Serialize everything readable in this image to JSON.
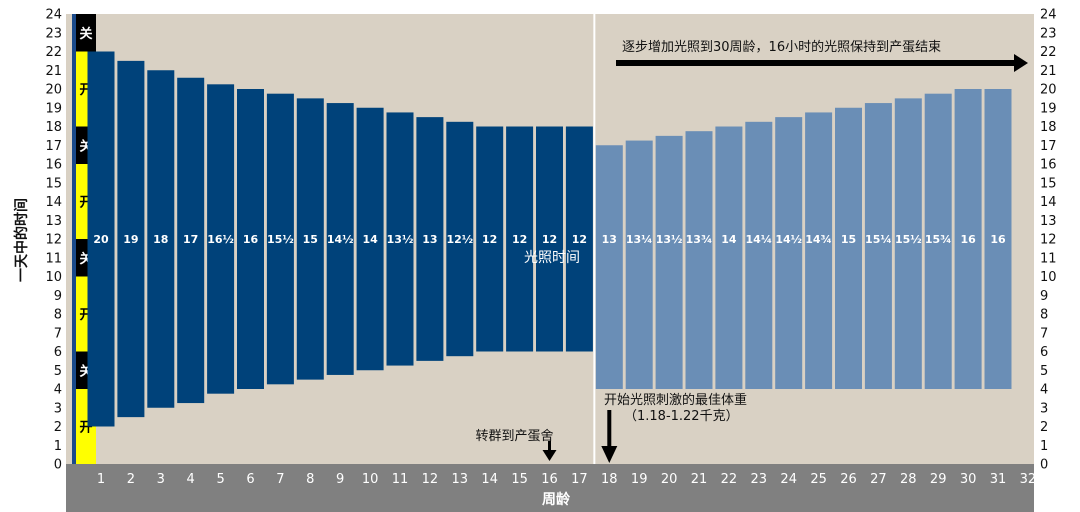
{
  "chart_data": {
    "type": "bar",
    "title": "",
    "ylabel": "一天中的时间",
    "xlabel": "周龄",
    "ylim": [
      0,
      24
    ],
    "y_ticks": [
      0,
      1,
      2,
      3,
      4,
      5,
      6,
      7,
      8,
      9,
      10,
      11,
      12,
      13,
      14,
      15,
      16,
      17,
      18,
      19,
      20,
      21,
      22,
      23,
      24
    ],
    "categories": [
      "1",
      "2",
      "3",
      "4",
      "5",
      "6",
      "7",
      "8",
      "9",
      "10",
      "11",
      "12",
      "13",
      "14",
      "15",
      "16",
      "17",
      "18",
      "19",
      "20",
      "21",
      "22",
      "23",
      "24",
      "25",
      "26",
      "27",
      "28",
      "29",
      "30",
      "31",
      "32"
    ],
    "series": [
      {
        "name": "",
        "color": "#00427a",
        "bars": [
          {
            "week": 1,
            "start": 2,
            "end": 22,
            "label": "20"
          },
          {
            "week": 2,
            "start": 2.5,
            "end": 21.5,
            "label": "19"
          },
          {
            "week": 3,
            "start": 3,
            "end": 21,
            "label": "18"
          },
          {
            "week": 4,
            "start": 3.25,
            "end": 20.6,
            "label": "17"
          },
          {
            "week": 5,
            "start": 3.75,
            "end": 20.25,
            "label": "16½"
          },
          {
            "week": 6,
            "start": 4,
            "end": 20,
            "label": "16"
          },
          {
            "week": 7,
            "start": 4.25,
            "end": 19.75,
            "label": "15½"
          },
          {
            "week": 8,
            "start": 4.5,
            "end": 19.5,
            "label": "15"
          },
          {
            "week": 9,
            "start": 4.75,
            "end": 19.25,
            "label": "14½"
          },
          {
            "week": 10,
            "start": 5,
            "end": 19,
            "label": "14"
          },
          {
            "week": 11,
            "start": 5.25,
            "end": 18.75,
            "label": "13½"
          },
          {
            "week": 12,
            "start": 5.5,
            "end": 18.5,
            "label": "13"
          },
          {
            "week": 13,
            "start": 5.75,
            "end": 18.25,
            "label": "12½"
          },
          {
            "week": 14,
            "start": 6,
            "end": 18,
            "label": "12"
          },
          {
            "week": 15,
            "start": 6,
            "end": 18,
            "label": "12"
          },
          {
            "week": 16,
            "start": 6,
            "end": 18,
            "label": "12"
          },
          {
            "week": 17,
            "start": 6,
            "end": 18,
            "label": "12"
          }
        ]
      },
      {
        "name": "",
        "color": "#6a8eb6",
        "bars": [
          {
            "week": 18,
            "start": 4,
            "end": 17,
            "label": "13"
          },
          {
            "week": 19,
            "start": 4,
            "end": 17.25,
            "label": "13¼"
          },
          {
            "week": 20,
            "start": 4,
            "end": 17.5,
            "label": "13½"
          },
          {
            "week": 21,
            "start": 4,
            "end": 17.75,
            "label": "13¾"
          },
          {
            "week": 22,
            "start": 4,
            "end": 18,
            "label": "14"
          },
          {
            "week": 23,
            "start": 4,
            "end": 18.25,
            "label": "14¼"
          },
          {
            "week": 24,
            "start": 4,
            "end": 18.5,
            "label": "14½"
          },
          {
            "week": 25,
            "start": 4,
            "end": 18.75,
            "label": "14¾"
          },
          {
            "week": 26,
            "start": 4,
            "end": 19,
            "label": "15"
          },
          {
            "week": 27,
            "start": 4,
            "end": 19.25,
            "label": "15¼"
          },
          {
            "week": 28,
            "start": 4,
            "end": 19.5,
            "label": "15½"
          },
          {
            "week": 29,
            "start": 4,
            "end": 19.75,
            "label": "15¾"
          },
          {
            "week": 30,
            "start": 4,
            "end": 20,
            "label": "16"
          },
          {
            "week": 31,
            "start": 4,
            "end": 20,
            "label": "16"
          }
        ]
      }
    ],
    "on_off_bands": [
      {
        "from": 22,
        "to": 24,
        "label": "关",
        "state": "off"
      },
      {
        "from": 18,
        "to": 22,
        "label": "开",
        "state": "on"
      },
      {
        "from": 16,
        "to": 18,
        "label": "关",
        "state": "off"
      },
      {
        "from": 12,
        "to": 16,
        "label": "开",
        "state": "on"
      },
      {
        "from": 10,
        "to": 12,
        "label": "关",
        "state": "off"
      },
      {
        "from": 6,
        "to": 10,
        "label": "开",
        "state": "on"
      },
      {
        "from": 4,
        "to": 6,
        "label": "关",
        "state": "off"
      },
      {
        "from": 0,
        "to": 4,
        "label": "开",
        "state": "on"
      }
    ],
    "annotations": {
      "center_label": "光照时间",
      "top_arrow_text": "逐步增加光照到30周龄，16小时的光照保持到产蛋结束",
      "transfer_text": "转群到产蛋舍",
      "transfer_week": 16,
      "stim_week": 18,
      "stim_text_line1": "开始光照刺激的最佳体重",
      "stim_text_line2": "（1.18-1.22千克）"
    },
    "grid": false,
    "legend": "none",
    "colors": {
      "background": "#d9d1c4",
      "xaxis_band": "#808080",
      "on_band": "#ffff00",
      "off_band": "#000000",
      "divider": "#ffffff"
    }
  }
}
